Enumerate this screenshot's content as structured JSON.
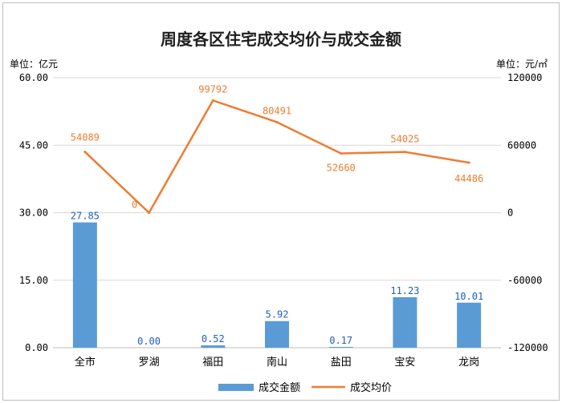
{
  "chart_data": {
    "type": "bar+line",
    "title": "周度各区住宅成交均价与成交金额",
    "y_left_unit_label": "单位：亿元",
    "y_right_unit_label": "单位：元/㎡",
    "categories": [
      "全市",
      "罗湖",
      "福田",
      "南山",
      "盐田",
      "宝安",
      "龙岗"
    ],
    "y_left": {
      "ylim": [
        0,
        60
      ],
      "ticks": [
        "0.00",
        "15.00",
        "30.00",
        "45.00",
        "60.00"
      ]
    },
    "y_right": {
      "ylim": [
        -120000,
        120000
      ],
      "ticks": [
        "-120000",
        "-60000",
        "0",
        "60000",
        "120000"
      ]
    },
    "grid": "horizontal",
    "legend_position": "bottom",
    "series": [
      {
        "name": "成交金额",
        "type": "bar",
        "axis": "left",
        "color": "#5b9bd5",
        "values": [
          27.85,
          0.0,
          0.52,
          5.92,
          0.17,
          11.23,
          10.01
        ],
        "labels": [
          "27.85",
          "0.00",
          "0.52",
          "5.92",
          "0.17",
          "11.23",
          "10.01"
        ]
      },
      {
        "name": "成交均价",
        "type": "line",
        "axis": "right",
        "color": "#ed7d31",
        "values": [
          54089,
          0,
          99792,
          80491,
          52660,
          54025,
          44486
        ],
        "labels": [
          "54089",
          "0",
          "99792",
          "80491",
          "52660",
          "54025",
          "44486"
        ]
      }
    ]
  }
}
